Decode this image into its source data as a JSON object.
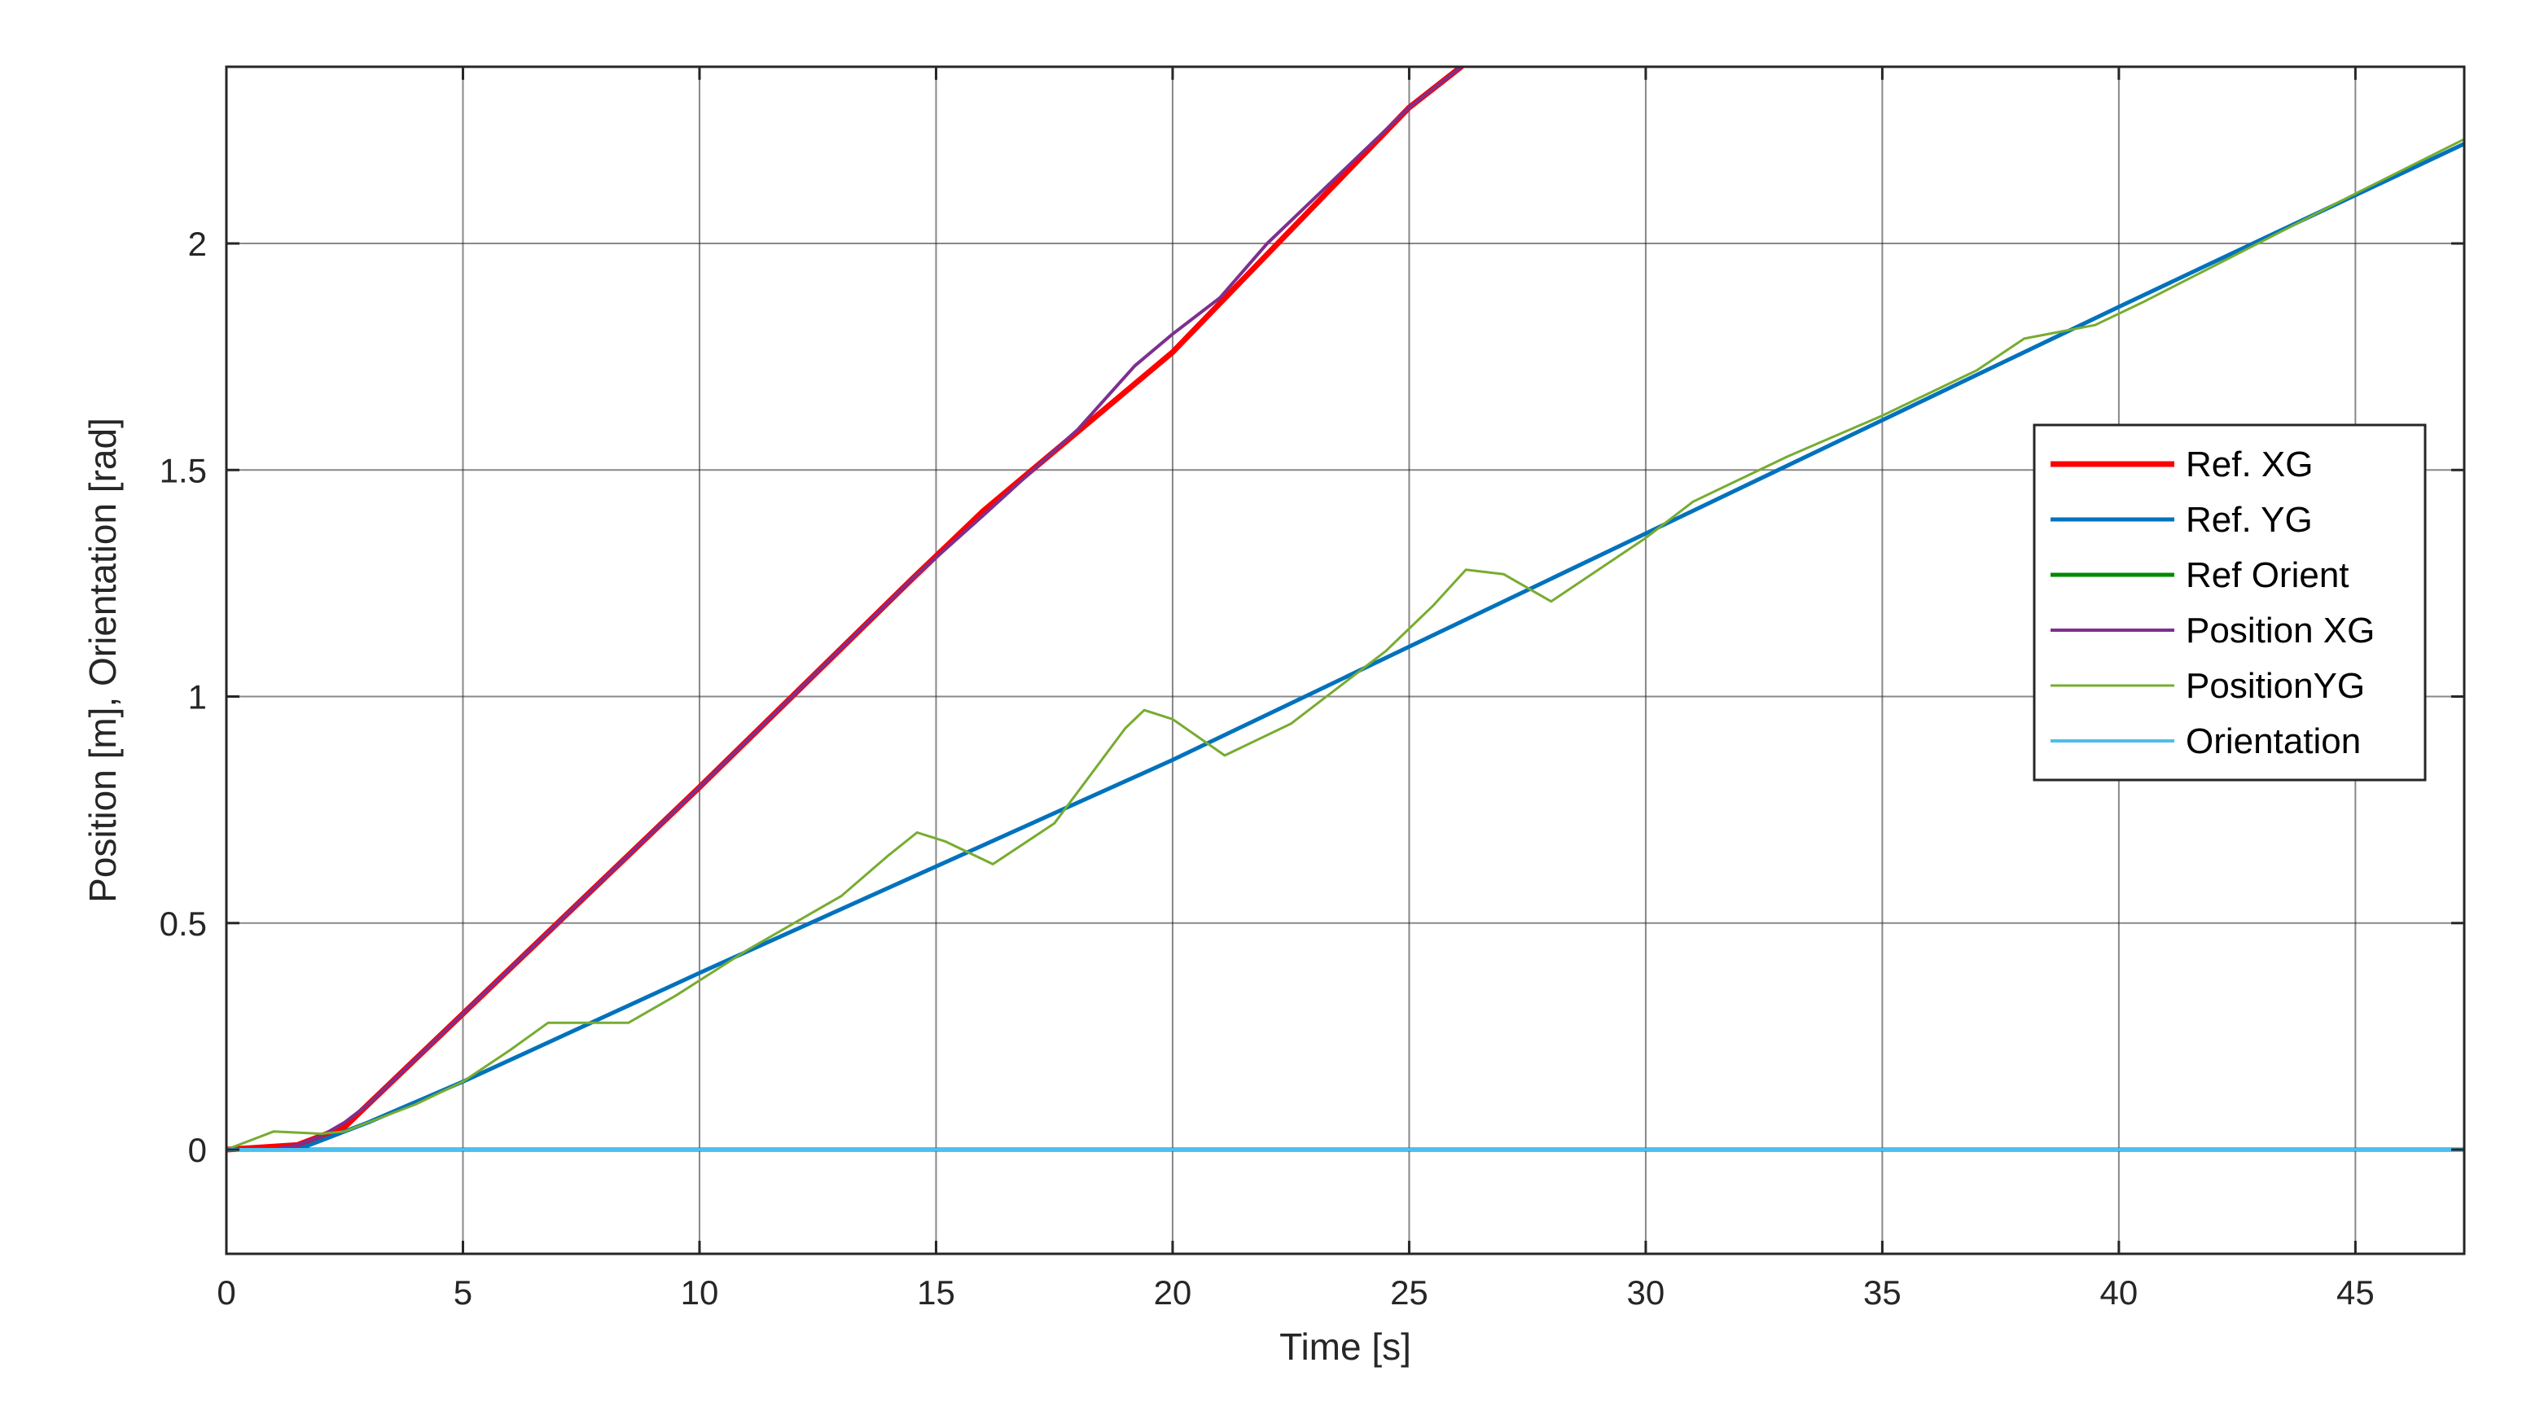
{
  "chart_data": {
    "type": "line",
    "title": "",
    "xlabel": "Time [s]",
    "ylabel": "Position [m], Orientation [rad]",
    "xlim": [
      0,
      47.3
    ],
    "ylim": [
      -0.23,
      2.39
    ],
    "xticks": [
      0,
      5,
      10,
      15,
      20,
      25,
      30,
      35,
      40,
      45
    ],
    "yticks": [
      0,
      0.5,
      1,
      1.5,
      2
    ],
    "grid": true,
    "legend_position": "right",
    "series": [
      {
        "name": "Ref. XG",
        "color": "#ff0000",
        "width": 7,
        "x": [
          0,
          1.5,
          2.5,
          3.5,
          5,
          10,
          14.5,
          16,
          20,
          25,
          26.1
        ],
        "y": [
          0,
          0.01,
          0.05,
          0.15,
          0.3,
          0.8,
          1.26,
          1.41,
          1.76,
          2.3,
          2.39
        ]
      },
      {
        "name": "Ref. YG",
        "color": "#0072bd",
        "width": 5,
        "x": [
          0,
          1.5,
          2,
          2.5,
          3,
          5,
          10,
          20,
          30,
          40,
          47.3
        ],
        "y": [
          0,
          0,
          0.02,
          0.04,
          0.06,
          0.15,
          0.39,
          0.86,
          1.36,
          1.86,
          2.22
        ]
      },
      {
        "name": "Ref Orient",
        "color": "#008a00",
        "width": 5,
        "x": [
          0,
          47.3
        ],
        "y": [
          0,
          0
        ]
      },
      {
        "name": "Position XG",
        "color": "#7e2f8e",
        "width": 4,
        "x": [
          0,
          1,
          1.5,
          2,
          2.5,
          3,
          3.5,
          5,
          10,
          14.5,
          16,
          18,
          19.2,
          20,
          21,
          22,
          25,
          26.1
        ],
        "y": [
          0,
          0,
          0.01,
          0.03,
          0.06,
          0.1,
          0.15,
          0.3,
          0.8,
          1.26,
          1.4,
          1.59,
          1.73,
          1.8,
          1.88,
          2.0,
          2.3,
          2.39
        ]
      },
      {
        "name": "PositionYG",
        "color": "#77ac30",
        "width": 3,
        "x": [
          0,
          1,
          2,
          2.5,
          3,
          4,
          5,
          6,
          6.8,
          7.5,
          8.5,
          9.5,
          11,
          13,
          14,
          14.6,
          15.2,
          16.2,
          17.5,
          19,
          19.4,
          20,
          21.1,
          22.5,
          24.5,
          25.5,
          26.2,
          27,
          28,
          30,
          31,
          33,
          35,
          37,
          38,
          39.5,
          40.5,
          42,
          45,
          47.3
        ],
        "y": [
          0,
          0.04,
          0.035,
          0.04,
          0.06,
          0.1,
          0.15,
          0.22,
          0.28,
          0.28,
          0.28,
          0.34,
          0.44,
          0.56,
          0.65,
          0.7,
          0.68,
          0.63,
          0.72,
          0.93,
          0.97,
          0.95,
          0.87,
          0.94,
          1.1,
          1.2,
          1.28,
          1.27,
          1.21,
          1.35,
          1.43,
          1.53,
          1.62,
          1.72,
          1.79,
          1.82,
          1.87,
          1.95,
          2.11,
          2.23
        ]
      },
      {
        "name": "Orientation",
        "color": "#4dbeee",
        "width": 4,
        "x": [
          0,
          47.3
        ],
        "y": [
          0,
          0
        ]
      }
    ]
  }
}
